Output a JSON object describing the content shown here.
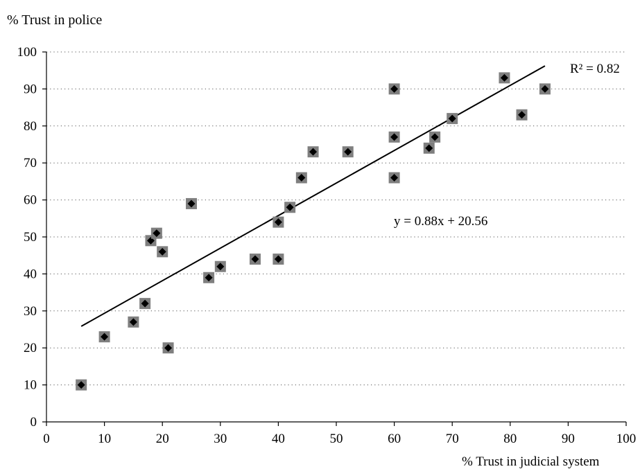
{
  "chart_data": {
    "type": "scatter",
    "ylabel": "% Trust in police",
    "xlabel": "% Trust in judicial system",
    "xlim": [
      0,
      100
    ],
    "ylim": [
      0,
      100
    ],
    "x_ticks": [
      "0",
      "10",
      "20",
      "30",
      "40",
      "50",
      "60",
      "70",
      "80",
      "90",
      "100"
    ],
    "y_ticks": [
      "0",
      "10",
      "20",
      "30",
      "40",
      "50",
      "60",
      "70",
      "80",
      "90",
      "100"
    ],
    "grid": "horizontal-dotted",
    "marker": "black diamond on grey square",
    "marker_colors": {
      "diamond": "#000000",
      "square": "#7f7f7f"
    },
    "trendline": {
      "slope": 0.88,
      "intercept": 20.56,
      "x_range": [
        6,
        86
      ],
      "equation": "y = 0.88x + 20.56",
      "r2": "R² = 0.82"
    },
    "points": [
      {
        "x": 6,
        "y": 10
      },
      {
        "x": 10,
        "y": 23
      },
      {
        "x": 15,
        "y": 27
      },
      {
        "x": 17,
        "y": 32
      },
      {
        "x": 18,
        "y": 49
      },
      {
        "x": 19,
        "y": 51
      },
      {
        "x": 20,
        "y": 46
      },
      {
        "x": 21,
        "y": 20
      },
      {
        "x": 25,
        "y": 59
      },
      {
        "x": 28,
        "y": 39
      },
      {
        "x": 30,
        "y": 42
      },
      {
        "x": 36,
        "y": 44
      },
      {
        "x": 40,
        "y": 44
      },
      {
        "x": 40,
        "y": 54
      },
      {
        "x": 42,
        "y": 58
      },
      {
        "x": 44,
        "y": 66
      },
      {
        "x": 46,
        "y": 73
      },
      {
        "x": 52,
        "y": 73
      },
      {
        "x": 60,
        "y": 66
      },
      {
        "x": 60,
        "y": 77
      },
      {
        "x": 60,
        "y": 90
      },
      {
        "x": 66,
        "y": 74
      },
      {
        "x": 67,
        "y": 77
      },
      {
        "x": 70,
        "y": 82
      },
      {
        "x": 79,
        "y": 93
      },
      {
        "x": 82,
        "y": 83
      },
      {
        "x": 86,
        "y": 90
      }
    ]
  }
}
